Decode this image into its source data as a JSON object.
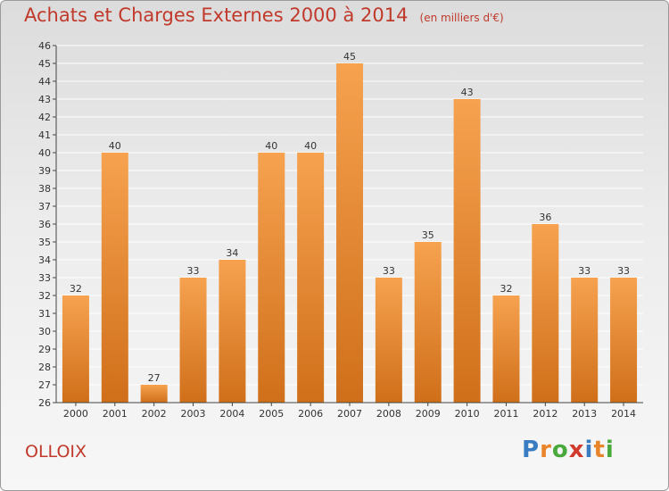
{
  "header": {
    "title": "Achats et Charges Externes 2000 à 2014",
    "unit": "(en milliers d'€)"
  },
  "footer": {
    "commune": "OLLOIX",
    "brand_letters": [
      "P",
      "r",
      "o",
      "x",
      "i",
      "t",
      "i"
    ],
    "brand_colors": [
      "#3a7cc2",
      "#e8852a",
      "#4aa93c",
      "#d13b2e",
      "#3a7cc2",
      "#e8852a",
      "#4aa93c"
    ]
  },
  "colors": {
    "title": "#c0392b",
    "bar_light": "#f6a24f",
    "bar_dark": "#d06f1a",
    "axis": "#444444",
    "grid": "#ffffff"
  },
  "chart_data": {
    "type": "bar",
    "title": "Achats et Charges Externes 2000 à 2014",
    "categories": [
      "2000",
      "2001",
      "2002",
      "2003",
      "2004",
      "2005",
      "2006",
      "2007",
      "2008",
      "2009",
      "2010",
      "2011",
      "2012",
      "2013",
      "2014"
    ],
    "values": [
      32,
      40,
      27,
      33,
      34,
      40,
      40,
      45,
      33,
      35,
      43,
      32,
      36,
      33,
      33
    ],
    "ylim": [
      26,
      46
    ],
    "yticks": [
      26,
      27,
      28,
      29,
      30,
      31,
      32,
      33,
      34,
      35,
      36,
      37,
      38,
      39,
      40,
      41,
      42,
      43,
      44,
      45,
      46
    ],
    "grid": true,
    "data_labels": true
  }
}
